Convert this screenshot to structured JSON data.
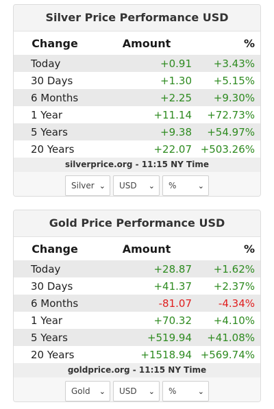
{
  "silver": {
    "title": "Silver Price Performance USD",
    "headers": {
      "change": "Change",
      "amount": "Amount",
      "pct": "%"
    },
    "rows": [
      {
        "label": "Today",
        "amount": "+0.91",
        "pct": "+3.43%"
      },
      {
        "label": "30 Days",
        "amount": "+1.30",
        "pct": "+5.15%"
      },
      {
        "label": "6 Months",
        "amount": "+2.25",
        "pct": "+9.30%"
      },
      {
        "label": "1 Year",
        "amount": "+11.14",
        "pct": "+72.73%"
      },
      {
        "label": "5 Years",
        "amount": "+9.38",
        "pct": "+54.97%"
      },
      {
        "label": "20 Years",
        "amount": "+22.07",
        "pct": "+503.26%"
      }
    ],
    "source": "silverprice.org - 11:15 NY Time",
    "selects": {
      "metal": "Silver",
      "currency": "USD",
      "unit": "%"
    }
  },
  "gold": {
    "title": "Gold Price Performance USD",
    "headers": {
      "change": "Change",
      "amount": "Amount",
      "pct": "%"
    },
    "rows": [
      {
        "label": "Today",
        "amount": "+28.87",
        "pct": "+1.62%"
      },
      {
        "label": "30 Days",
        "amount": "+41.37",
        "pct": "+2.37%"
      },
      {
        "label": "6 Months",
        "amount": "-81.07",
        "pct": "-4.34%"
      },
      {
        "label": "1 Year",
        "amount": "+70.32",
        "pct": "+4.10%"
      },
      {
        "label": "5 Years",
        "amount": "+519.94",
        "pct": "+41.08%"
      },
      {
        "label": "20 Years",
        "amount": "+1518.94",
        "pct": "+569.74%"
      }
    ],
    "source": "goldprice.org - 11:15 NY Time",
    "selects": {
      "metal": "Gold",
      "currency": "USD",
      "unit": "%"
    }
  },
  "colors": {
    "positive": "#2e8b20",
    "negative": "#e01e1e",
    "shade": "#e9e9e9"
  },
  "icons": {
    "dropdown": "chevron-down-icon"
  }
}
